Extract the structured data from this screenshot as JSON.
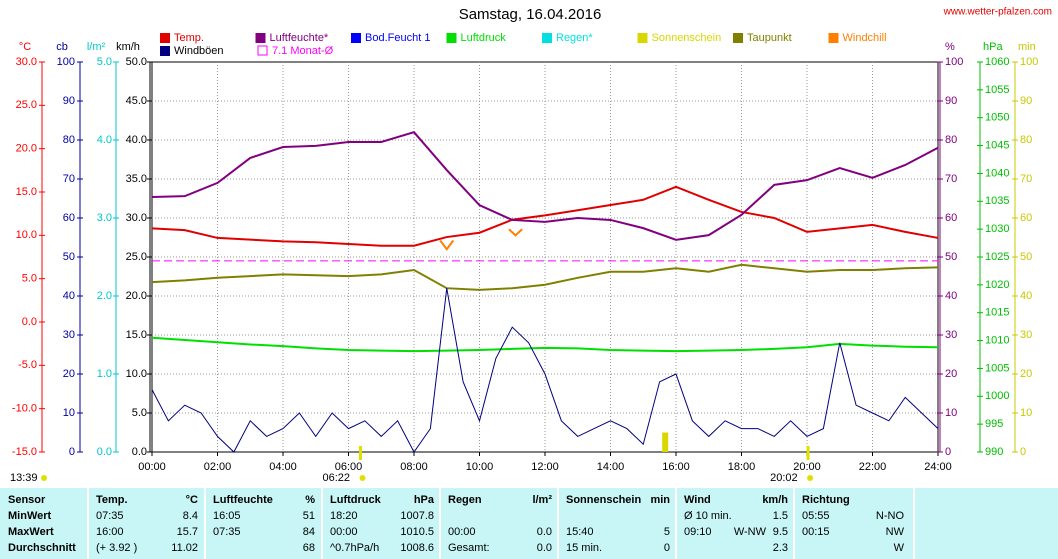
{
  "source": "www.wetter-pfalzen.com",
  "updated": "13:39",
  "chart_data": {
    "type": "line",
    "title": "Samstag, 16.04.2016",
    "x": [
      0,
      1,
      2,
      3,
      4,
      5,
      6,
      7,
      8,
      9,
      10,
      11,
      12,
      13,
      14,
      15,
      16,
      17,
      18,
      19,
      20,
      21,
      22,
      23,
      24
    ],
    "xlim": [
      0,
      24
    ],
    "xticks": [
      {
        "value": 0,
        "label": "00:00"
      },
      {
        "value": 2,
        "label": "02:00"
      },
      {
        "value": 4,
        "label": "04:00"
      },
      {
        "value": 6,
        "label": "06:00"
      },
      {
        "value": 8,
        "label": "08:00"
      },
      {
        "value": 10,
        "label": "10:00"
      },
      {
        "value": 12,
        "label": "12:00"
      },
      {
        "value": 14,
        "label": "14:00"
      },
      {
        "value": 16,
        "label": "16:00"
      },
      {
        "value": 18,
        "label": "18:00"
      },
      {
        "value": 20,
        "label": "20:00"
      },
      {
        "value": 22,
        "label": "22:00"
      },
      {
        "value": 24,
        "label": "24:00"
      }
    ],
    "grid": true,
    "axes": [
      {
        "label": "°C",
        "color": "#ff0000",
        "side": "left",
        "lim": [
          -15,
          30
        ],
        "ticks": [
          {
            "value": -15,
            "label": "-15.0"
          },
          {
            "value": -10,
            "label": "-10.0"
          },
          {
            "value": -5,
            "label": "-5.0"
          },
          {
            "value": 0,
            "label": "0.0"
          },
          {
            "value": 5,
            "label": "5.0"
          },
          {
            "value": 10,
            "label": "10.0"
          },
          {
            "value": 15,
            "label": "15.0"
          },
          {
            "value": 20,
            "label": "20.0"
          },
          {
            "value": 25,
            "label": "25.0"
          },
          {
            "value": 30,
            "label": "30.0"
          }
        ]
      },
      {
        "label": "cb",
        "color": "#0000a0",
        "side": "left",
        "lim": [
          0,
          100
        ],
        "ticks": [
          0,
          10,
          20,
          30,
          40,
          50,
          60,
          70,
          80,
          90,
          100
        ]
      },
      {
        "label": "l/m²",
        "color": "#00c8c8",
        "side": "left",
        "lim": [
          0,
          5
        ],
        "ticks": [
          {
            "value": 0,
            "label": "0.0"
          },
          {
            "value": 1,
            "label": "1.0"
          },
          {
            "value": 2,
            "label": "2.0"
          },
          {
            "value": 3,
            "label": "3.0"
          },
          {
            "value": 4,
            "label": "4.0"
          },
          {
            "value": 5,
            "label": "5.0"
          }
        ]
      },
      {
        "label": "km/h",
        "color": "#000000",
        "side": "left",
        "lim": [
          0,
          50
        ],
        "ticks": [
          {
            "value": 0,
            "label": "0.0"
          },
          {
            "value": 5,
            "label": "5.0"
          },
          {
            "value": 10,
            "label": "10.0"
          },
          {
            "value": 15,
            "label": "15.0"
          },
          {
            "value": 20,
            "label": "20.0"
          },
          {
            "value": 25,
            "label": "25.0"
          },
          {
            "value": 30,
            "label": "30.0"
          },
          {
            "value": 35,
            "label": "35.0"
          },
          {
            "value": 40,
            "label": "40.0"
          },
          {
            "value": 45,
            "label": "45.0"
          },
          {
            "value": 50,
            "label": "50.0"
          }
        ]
      },
      {
        "label": "%",
        "color": "#800080",
        "side": "right",
        "lim": [
          0,
          100
        ],
        "ticks": [
          0,
          10,
          20,
          30,
          40,
          50,
          60,
          70,
          80,
          90,
          100
        ]
      },
      {
        "label": "hPa",
        "color": "#00c000",
        "side": "right",
        "lim": [
          990,
          1060
        ],
        "ticks": [
          990,
          995,
          1000,
          1005,
          1010,
          1015,
          1020,
          1025,
          1030,
          1035,
          1040,
          1045,
          1050,
          1055,
          1060
        ]
      },
      {
        "label": "min",
        "color": "#c8c800",
        "side": "right",
        "lim": [
          0,
          100
        ],
        "ticks": [
          0,
          10,
          20,
          30,
          40,
          50,
          60,
          70,
          80,
          90,
          100
        ]
      }
    ],
    "series": [
      {
        "name": "Temp.",
        "color": "#e00000",
        "axis": 0,
        "values": [
          10.8,
          10.6,
          9.7,
          9.5,
          9.3,
          9.2,
          9.0,
          8.8,
          8.8,
          9.8,
          10.3,
          11.8,
          12.3,
          12.9,
          13.5,
          14.1,
          15.6,
          14.1,
          12.7,
          12.0,
          10.4,
          10.8,
          11.2,
          10.4,
          9.7
        ]
      },
      {
        "name": "Luftfeuchte*",
        "color": "#800080",
        "axis": 4,
        "values": [
          65.4,
          65.6,
          69,
          75.4,
          78.2,
          78.5,
          79.5,
          79.5,
          82,
          72.3,
          63.3,
          59.5,
          59,
          60,
          59.5,
          57.4,
          54.4,
          55.6,
          60.8,
          68.5,
          69.7,
          72.8,
          70.3,
          73.6,
          78
        ]
      },
      {
        "name": "Bod.Feucht 1",
        "color": "#0000ff",
        "axis": 4
      },
      {
        "name": "Luftdruck",
        "color": "#00e000",
        "axis": 5,
        "values": [
          1010.5,
          1010.1,
          1009.7,
          1009.3,
          1009.0,
          1008.6,
          1008.3,
          1008.2,
          1008.1,
          1008.2,
          1008.3,
          1008.5,
          1008.7,
          1008.6,
          1008.3,
          1008.2,
          1008.1,
          1008.2,
          1008.3,
          1008.5,
          1008.8,
          1009.4,
          1009.1,
          1008.9,
          1008.8
        ]
      },
      {
        "name": "Regen*",
        "color": "#00e0e0",
        "axis": 2
      },
      {
        "name": "Sonnenschein",
        "color": "#d8d800",
        "axis": 6,
        "kind": "bar",
        "x": [
          15.67
        ],
        "values": [
          5
        ]
      },
      {
        "name": "Taupunkt",
        "color": "#808000",
        "axis": 0,
        "values": [
          4.6,
          4.8,
          5.1,
          5.3,
          5.5,
          5.4,
          5.3,
          5.5,
          6.0,
          3.9,
          3.7,
          3.9,
          4.3,
          5.1,
          5.8,
          5.8,
          6.2,
          5.8,
          6.6,
          6.2,
          5.8,
          6.0,
          6.0,
          6.2,
          6.3
        ]
      },
      {
        "name": "Windchill",
        "color": "#ff8000",
        "axis": 0,
        "x": [
          8.8,
          9.0,
          9.2,
          10,
          10.9,
          11.1,
          11.3
        ],
        "values": [
          9.4,
          8.4,
          9.4,
          null,
          10.7,
          10.0,
          10.7
        ]
      },
      {
        "name": "Windböen",
        "color": "#000080",
        "axis": 3,
        "x": [
          0,
          0.5,
          1,
          1.5,
          2,
          2.5,
          3,
          3.5,
          4,
          4.5,
          5,
          5.5,
          6,
          6.5,
          7,
          7.5,
          8,
          8.5,
          9,
          9.5,
          10,
          10.5,
          11,
          11.5,
          12,
          12.5,
          13,
          13.5,
          14,
          14.5,
          15,
          15.5,
          16,
          16.5,
          17,
          17.5,
          18,
          18.5,
          19,
          19.5,
          20,
          20.5,
          21,
          21.5,
          22,
          22.5,
          23,
          23.5,
          24
        ],
        "values": [
          8,
          4,
          6,
          5,
          2,
          0,
          4,
          2,
          3,
          5,
          2,
          5,
          3,
          4,
          2,
          4,
          0,
          3,
          21,
          9,
          4,
          12,
          16,
          14,
          10,
          4,
          2,
          3,
          4,
          3,
          1,
          9,
          10,
          4,
          2,
          4,
          3,
          3,
          2,
          4,
          2,
          3,
          14,
          6,
          5,
          4,
          7,
          5,
          3
        ]
      }
    ],
    "reference": {
      "name": "7.1 Monat-Ø",
      "color": "#ff00ff",
      "axis": 4,
      "value": 49
    },
    "sunrise": "06:22",
    "sunset": "20:02"
  },
  "table": {
    "header": [
      {
        "name": "Sensor"
      },
      {
        "name": "Temp.",
        "unit": "°C"
      },
      {
        "name": "Luftfeuchte",
        "unit": "%"
      },
      {
        "name": "Luftdruck",
        "unit": "hPa"
      },
      {
        "name": "Regen",
        "unit": "l/m²"
      },
      {
        "name": "Sonnenschein",
        "unit": "min"
      },
      {
        "name": "Wind",
        "unit": "km/h"
      },
      {
        "name": "Richtung"
      }
    ],
    "rows": [
      {
        "label": "MinWert",
        "cells": [
          [
            "07:35",
            "8.4"
          ],
          [
            "16:05",
            "51"
          ],
          [
            "18:20",
            "1007.8"
          ],
          [
            null,
            null
          ],
          [
            null,
            null
          ],
          [
            "Ø 10 min.",
            null,
            "1.5"
          ],
          [
            "05:55",
            "N-NO"
          ]
        ]
      },
      {
        "label": "MaxWert",
        "cells": [
          [
            "16:00",
            "15.7"
          ],
          [
            "07:35",
            "84"
          ],
          [
            "00:00",
            "1010.5"
          ],
          [
            "00:00",
            "0.0"
          ],
          [
            "15:40",
            "5"
          ],
          [
            "09:10",
            "W-NW",
            "9.5"
          ],
          [
            "00:15",
            "NW"
          ]
        ]
      },
      {
        "label": "Durchschnitt",
        "cells": [
          [
            "(+ 3.92 )",
            "11.02"
          ],
          [
            null,
            "68"
          ],
          [
            "^0.7hPa/h",
            "1008.6"
          ],
          [
            "Gesamt:",
            "0.0"
          ],
          [
            "15 min.",
            "0"
          ],
          [
            null,
            null,
            "2.3"
          ],
          [
            null,
            "W"
          ]
        ]
      }
    ]
  }
}
